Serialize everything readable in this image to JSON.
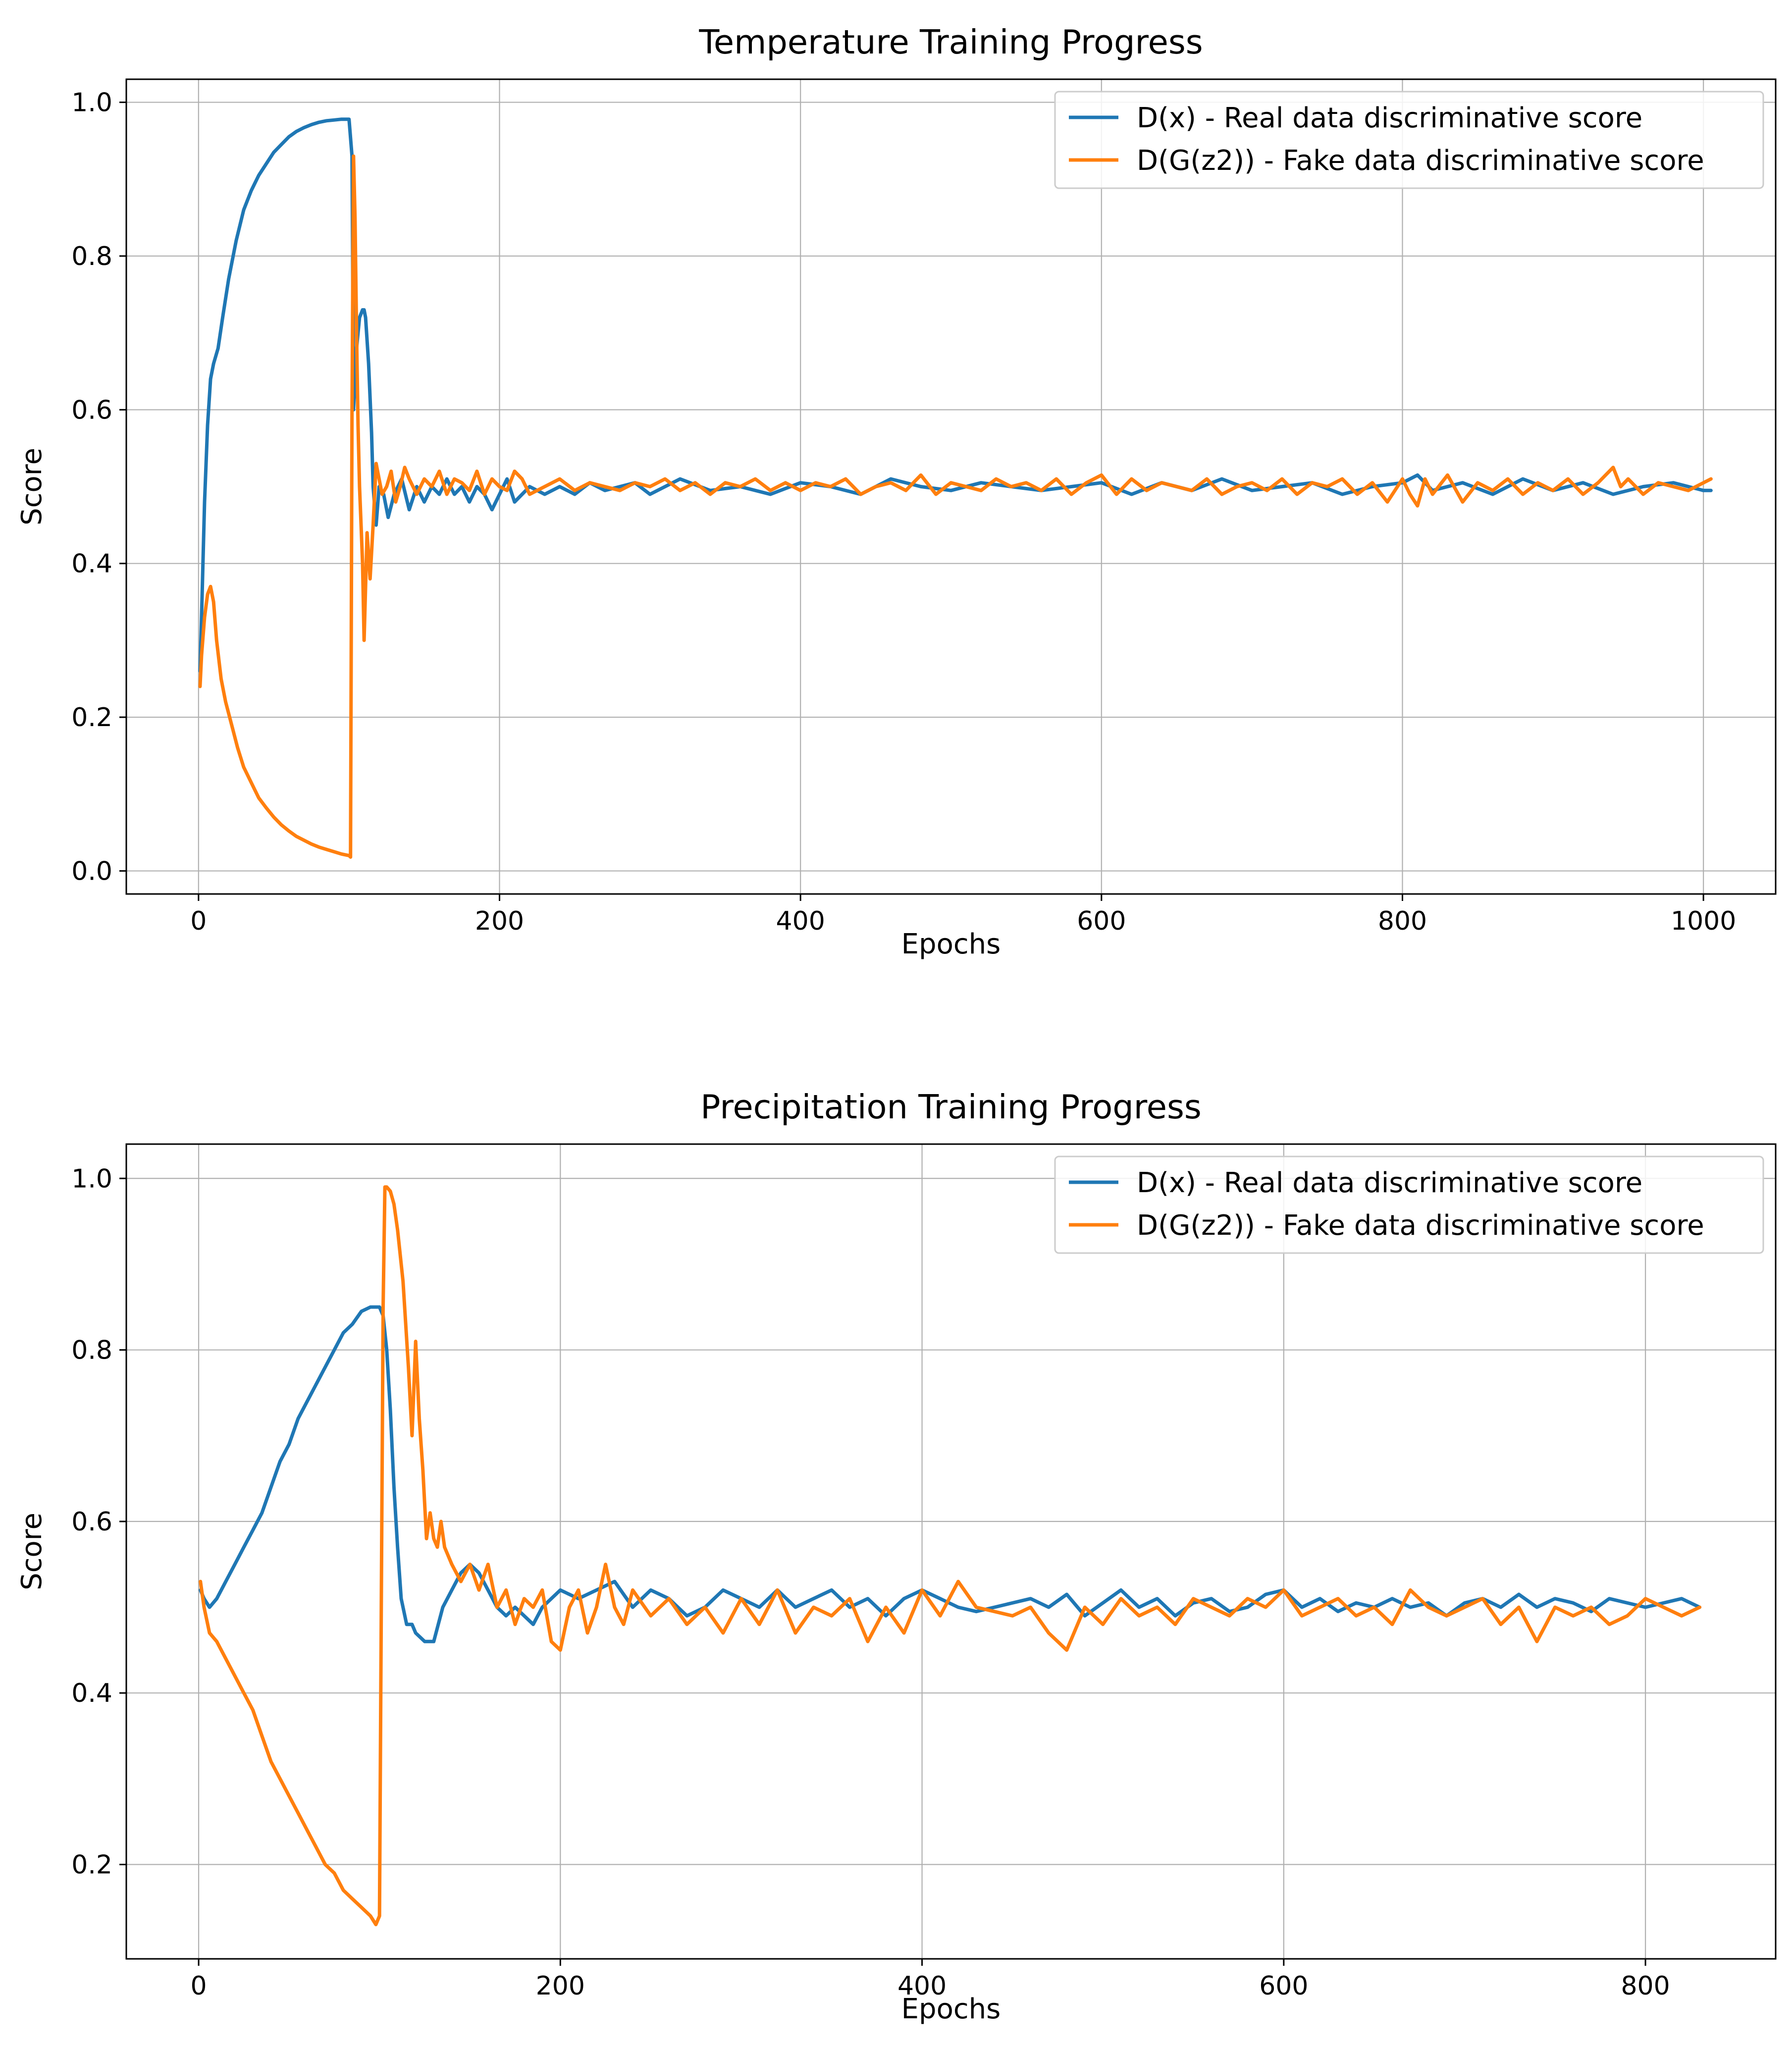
{
  "chart_data": [
    {
      "type": "line",
      "title": "Temperature Training Progress",
      "xlabel": "Epochs",
      "ylabel": "Score",
      "xlim": [
        -48,
        1048
      ],
      "ylim": [
        -0.03,
        1.03
      ],
      "xticks": [
        0,
        200,
        400,
        600,
        800,
        1000
      ],
      "yticks": [
        0.0,
        0.2,
        0.4,
        0.6,
        0.8,
        1.0
      ],
      "xtick_labels": [
        "0",
        "200",
        "400",
        "600",
        "800",
        "1000"
      ],
      "ytick_labels": [
        "0.0",
        "0.2",
        "0.4",
        "0.6",
        "0.8",
        "1.0"
      ],
      "grid": true,
      "legend_location": "top-right",
      "series": [
        {
          "name": "D(x) - Real data discriminative score",
          "color": "#1f77b4",
          "x": [
            1,
            2,
            4,
            6,
            8,
            10,
            13,
            16,
            20,
            25,
            30,
            35,
            40,
            45,
            50,
            55,
            60,
            65,
            70,
            75,
            80,
            85,
            90,
            95,
            100,
            102,
            103,
            105,
            107,
            109,
            110,
            111,
            113,
            115,
            116,
            118,
            120,
            123,
            126,
            130,
            135,
            140,
            145,
            150,
            155,
            160,
            165,
            170,
            175,
            180,
            185,
            190,
            195,
            200,
            205,
            210,
            220,
            230,
            240,
            250,
            260,
            270,
            280,
            290,
            300,
            320,
            340,
            360,
            380,
            400,
            420,
            440,
            460,
            480,
            500,
            520,
            540,
            560,
            580,
            600,
            620,
            640,
            660,
            680,
            700,
            720,
            740,
            760,
            780,
            800,
            810,
            820,
            840,
            860,
            880,
            900,
            920,
            940,
            960,
            980,
            1000,
            1005
          ],
          "y": [
            0.26,
            0.33,
            0.48,
            0.58,
            0.64,
            0.66,
            0.68,
            0.72,
            0.77,
            0.82,
            0.86,
            0.885,
            0.905,
            0.92,
            0.935,
            0.945,
            0.955,
            0.962,
            0.967,
            0.971,
            0.974,
            0.976,
            0.977,
            0.978,
            0.978,
            0.93,
            0.6,
            0.68,
            0.72,
            0.73,
            0.73,
            0.72,
            0.66,
            0.57,
            0.5,
            0.45,
            0.5,
            0.49,
            0.46,
            0.49,
            0.51,
            0.47,
            0.5,
            0.48,
            0.5,
            0.49,
            0.51,
            0.49,
            0.5,
            0.48,
            0.5,
            0.49,
            0.47,
            0.49,
            0.51,
            0.48,
            0.5,
            0.49,
            0.5,
            0.49,
            0.505,
            0.495,
            0.5,
            0.505,
            0.49,
            0.51,
            0.495,
            0.5,
            0.49,
            0.505,
            0.5,
            0.49,
            0.51,
            0.5,
            0.495,
            0.505,
            0.5,
            0.495,
            0.5,
            0.505,
            0.49,
            0.505,
            0.495,
            0.51,
            0.495,
            0.5,
            0.505,
            0.49,
            0.5,
            0.505,
            0.515,
            0.495,
            0.505,
            0.49,
            0.51,
            0.495,
            0.505,
            0.49,
            0.5,
            0.505,
            0.495,
            0.495
          ]
        },
        {
          "name": "D(G(z2)) - Fake data discriminative score",
          "color": "#ff7f0e",
          "x": [
            1,
            2,
            4,
            6,
            8,
            10,
            12,
            15,
            18,
            22,
            26,
            30,
            35,
            40,
            45,
            50,
            55,
            60,
            65,
            70,
            75,
            80,
            85,
            90,
            95,
            100,
            101,
            102,
            103,
            104,
            105,
            106,
            107,
            108,
            109,
            110,
            112,
            114,
            116,
            118,
            120,
            122,
            125,
            128,
            131,
            134,
            137,
            140,
            145,
            150,
            155,
            160,
            165,
            170,
            175,
            180,
            185,
            190,
            195,
            200,
            205,
            210,
            215,
            220,
            230,
            240,
            250,
            260,
            270,
            280,
            290,
            300,
            310,
            320,
            330,
            340,
            350,
            360,
            370,
            380,
            390,
            400,
            410,
            420,
            430,
            440,
            450,
            460,
            470,
            480,
            490,
            500,
            510,
            520,
            530,
            540,
            550,
            560,
            570,
            580,
            590,
            600,
            610,
            620,
            630,
            640,
            650,
            660,
            670,
            680,
            690,
            700,
            710,
            720,
            730,
            740,
            750,
            760,
            770,
            780,
            790,
            800,
            805,
            810,
            815,
            820,
            830,
            840,
            850,
            860,
            870,
            880,
            890,
            900,
            910,
            920,
            930,
            940,
            945,
            950,
            960,
            970,
            980,
            990,
            1000,
            1005
          ],
          "y": [
            0.24,
            0.28,
            0.33,
            0.36,
            0.37,
            0.35,
            0.3,
            0.25,
            0.22,
            0.19,
            0.16,
            0.135,
            0.115,
            0.095,
            0.082,
            0.07,
            0.06,
            0.052,
            0.045,
            0.04,
            0.035,
            0.031,
            0.028,
            0.025,
            0.022,
            0.02,
            0.018,
            0.6,
            0.93,
            0.85,
            0.7,
            0.58,
            0.5,
            0.45,
            0.4,
            0.3,
            0.44,
            0.38,
            0.45,
            0.53,
            0.51,
            0.49,
            0.5,
            0.52,
            0.48,
            0.5,
            0.525,
            0.51,
            0.49,
            0.51,
            0.5,
            0.52,
            0.49,
            0.51,
            0.505,
            0.495,
            0.52,
            0.49,
            0.51,
            0.5,
            0.495,
            0.52,
            0.51,
            0.49,
            0.5,
            0.51,
            0.495,
            0.505,
            0.5,
            0.495,
            0.505,
            0.5,
            0.51,
            0.495,
            0.505,
            0.49,
            0.505,
            0.5,
            0.51,
            0.495,
            0.505,
            0.495,
            0.505,
            0.5,
            0.51,
            0.49,
            0.5,
            0.505,
            0.495,
            0.515,
            0.49,
            0.505,
            0.5,
            0.495,
            0.51,
            0.5,
            0.505,
            0.495,
            0.51,
            0.49,
            0.505,
            0.515,
            0.49,
            0.51,
            0.495,
            0.505,
            0.5,
            0.495,
            0.51,
            0.49,
            0.5,
            0.505,
            0.495,
            0.51,
            0.49,
            0.505,
            0.5,
            0.51,
            0.49,
            0.505,
            0.48,
            0.51,
            0.49,
            0.475,
            0.51,
            0.49,
            0.515,
            0.48,
            0.505,
            0.495,
            0.51,
            0.49,
            0.505,
            0.495,
            0.51,
            0.49,
            0.505,
            0.525,
            0.5,
            0.51,
            0.49,
            0.505,
            0.5,
            0.495,
            0.505,
            0.51
          ]
        }
      ]
    },
    {
      "type": "line",
      "title": "Precipitation Training Progress",
      "xlabel": "Epochs",
      "ylabel": "Score",
      "xlim": [
        -40,
        872
      ],
      "ylim": [
        0.09,
        1.04
      ],
      "xticks": [
        0,
        200,
        400,
        600,
        800
      ],
      "yticks": [
        0.2,
        0.4,
        0.6,
        0.8,
        1.0
      ],
      "xtick_labels": [
        "0",
        "200",
        "400",
        "600",
        "800"
      ],
      "ytick_labels": [
        "0.2",
        "0.4",
        "0.6",
        "0.8",
        "1.0"
      ],
      "grid": true,
      "legend_location": "top-right",
      "series": [
        {
          "name": "D(x) - Real data discriminative score",
          "color": "#1f77b4",
          "x": [
            1,
            3,
            6,
            10,
            15,
            20,
            25,
            30,
            35,
            40,
            45,
            50,
            55,
            60,
            65,
            70,
            75,
            80,
            85,
            90,
            95,
            100,
            102,
            104,
            106,
            108,
            110,
            112,
            115,
            118,
            120,
            125,
            130,
            135,
            140,
            145,
            150,
            155,
            160,
            165,
            170,
            175,
            180,
            185,
            190,
            195,
            200,
            210,
            220,
            230,
            240,
            250,
            260,
            270,
            280,
            290,
            300,
            310,
            320,
            330,
            340,
            350,
            360,
            370,
            380,
            390,
            400,
            410,
            420,
            430,
            440,
            450,
            460,
            470,
            480,
            490,
            500,
            510,
            520,
            530,
            540,
            550,
            560,
            570,
            580,
            590,
            600,
            610,
            620,
            630,
            640,
            650,
            660,
            670,
            680,
            690,
            700,
            710,
            720,
            730,
            740,
            750,
            760,
            770,
            780,
            790,
            800,
            810,
            820,
            830
          ],
          "y": [
            0.52,
            0.51,
            0.5,
            0.51,
            0.53,
            0.55,
            0.57,
            0.59,
            0.61,
            0.64,
            0.67,
            0.69,
            0.72,
            0.74,
            0.76,
            0.78,
            0.8,
            0.82,
            0.83,
            0.845,
            0.85,
            0.85,
            0.84,
            0.8,
            0.73,
            0.64,
            0.57,
            0.51,
            0.48,
            0.48,
            0.47,
            0.46,
            0.46,
            0.5,
            0.52,
            0.54,
            0.55,
            0.54,
            0.52,
            0.5,
            0.49,
            0.5,
            0.49,
            0.48,
            0.5,
            0.51,
            0.52,
            0.51,
            0.52,
            0.53,
            0.5,
            0.52,
            0.51,
            0.49,
            0.5,
            0.52,
            0.51,
            0.5,
            0.52,
            0.5,
            0.51,
            0.52,
            0.5,
            0.51,
            0.49,
            0.51,
            0.52,
            0.51,
            0.5,
            0.495,
            0.5,
            0.505,
            0.51,
            0.5,
            0.515,
            0.49,
            0.505,
            0.52,
            0.5,
            0.51,
            0.49,
            0.505,
            0.51,
            0.495,
            0.5,
            0.515,
            0.52,
            0.5,
            0.51,
            0.495,
            0.505,
            0.5,
            0.51,
            0.5,
            0.505,
            0.49,
            0.505,
            0.51,
            0.5,
            0.515,
            0.5,
            0.51,
            0.505,
            0.495,
            0.51,
            0.505,
            0.5,
            0.505,
            0.51,
            0.5
          ],
          "y_note": ""
        },
        {
          "name": "D(G(z2)) - Fake data discriminative score",
          "color": "#ff7f0e",
          "x": [
            1,
            3,
            6,
            10,
            15,
            20,
            25,
            30,
            35,
            40,
            45,
            50,
            55,
            60,
            65,
            70,
            75,
            80,
            85,
            90,
            95,
            98,
            100,
            101,
            102,
            103,
            104,
            106,
            108,
            110,
            113,
            116,
            118,
            120,
            122,
            124,
            126,
            128,
            130,
            132,
            134,
            136,
            138,
            140,
            145,
            150,
            155,
            160,
            165,
            170,
            175,
            180,
            185,
            190,
            195,
            200,
            205,
            210,
            215,
            220,
            225,
            230,
            235,
            240,
            250,
            260,
            270,
            280,
            290,
            300,
            310,
            320,
            330,
            340,
            350,
            360,
            370,
            380,
            390,
            400,
            410,
            420,
            430,
            440,
            450,
            460,
            470,
            480,
            490,
            500,
            510,
            520,
            530,
            540,
            550,
            560,
            570,
            580,
            590,
            600,
            610,
            620,
            630,
            640,
            650,
            660,
            670,
            680,
            690,
            700,
            710,
            720,
            730,
            740,
            750,
            760,
            770,
            780,
            790,
            800,
            810,
            820,
            830
          ],
          "y": [
            0.53,
            0.5,
            0.47,
            0.46,
            0.44,
            0.42,
            0.4,
            0.38,
            0.35,
            0.32,
            0.3,
            0.28,
            0.26,
            0.24,
            0.22,
            0.2,
            0.19,
            0.17,
            0.16,
            0.15,
            0.14,
            0.13,
            0.14,
            0.5,
            0.85,
            0.99,
            0.99,
            0.985,
            0.97,
            0.94,
            0.88,
            0.78,
            0.7,
            0.81,
            0.72,
            0.66,
            0.58,
            0.61,
            0.58,
            0.57,
            0.6,
            0.57,
            0.56,
            0.55,
            0.53,
            0.55,
            0.52,
            0.55,
            0.5,
            0.52,
            0.48,
            0.51,
            0.5,
            0.52,
            0.46,
            0.45,
            0.5,
            0.52,
            0.47,
            0.5,
            0.55,
            0.5,
            0.48,
            0.52,
            0.49,
            0.51,
            0.48,
            0.5,
            0.47,
            0.51,
            0.48,
            0.52,
            0.47,
            0.5,
            0.49,
            0.51,
            0.46,
            0.5,
            0.47,
            0.52,
            0.49,
            0.53,
            0.5,
            0.495,
            0.49,
            0.5,
            0.47,
            0.45,
            0.5,
            0.48,
            0.51,
            0.49,
            0.5,
            0.48,
            0.51,
            0.5,
            0.49,
            0.51,
            0.5,
            0.52,
            0.49,
            0.5,
            0.51,
            0.49,
            0.5,
            0.48,
            0.52,
            0.5,
            0.49,
            0.5,
            0.51,
            0.48,
            0.5,
            0.46,
            0.5,
            0.49,
            0.5,
            0.48,
            0.49,
            0.51,
            0.5,
            0.49,
            0.5
          ]
        }
      ]
    }
  ]
}
